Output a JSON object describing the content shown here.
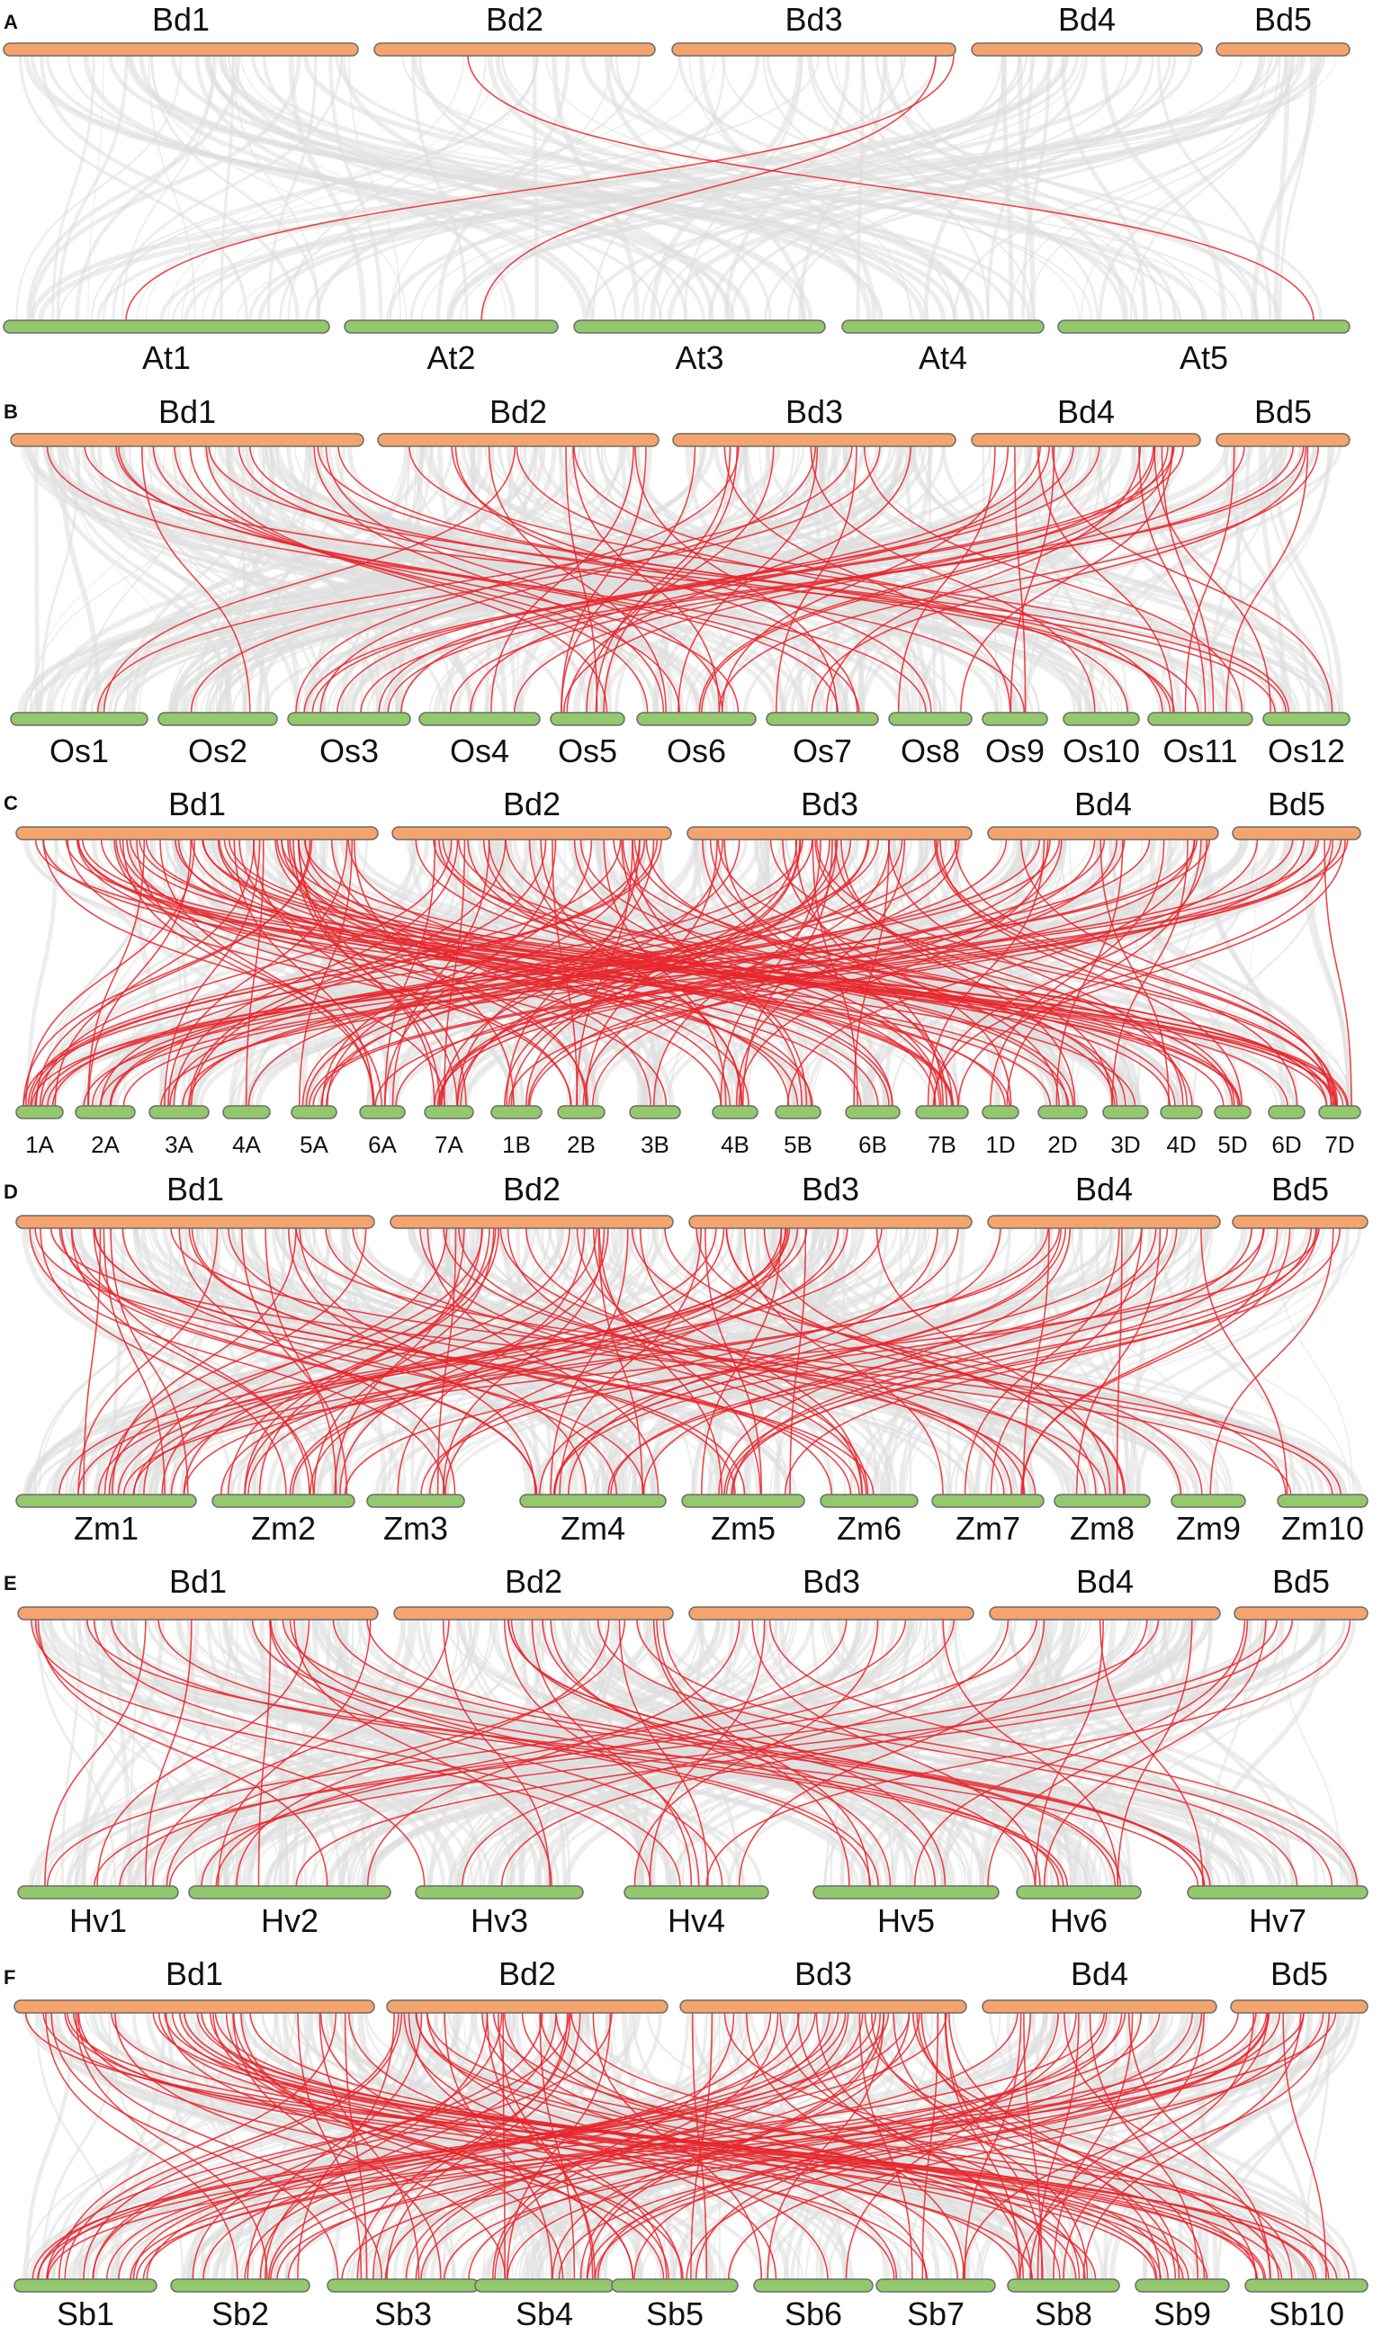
{
  "colors": {
    "top_chromosome": "#f4a46c",
    "bottom_chromosome": "#93c86d",
    "background_link": "#dedede",
    "highlight_link": "#e8262b"
  },
  "top_chromosomes": [
    "Bd1",
    "Bd2",
    "Bd3",
    "Bd4",
    "Bd5"
  ],
  "panels": [
    {
      "letter": "A",
      "bottom_chromosomes": [
        "At1",
        "At2",
        "At3",
        "At4",
        "At5"
      ],
      "red_link_count": 3,
      "grey_link_density": 140
    },
    {
      "letter": "B",
      "bottom_chromosomes": [
        "Os1",
        "Os2",
        "Os3",
        "Os4",
        "Os5",
        "Os6",
        "Os7",
        "Os8",
        "Os9",
        "Os10",
        "Os11",
        "Os12"
      ],
      "red_link_count": 70,
      "grey_link_density": 300
    },
    {
      "letter": "C",
      "bottom_chromosomes": [
        "1A",
        "2A",
        "3A",
        "4A",
        "5A",
        "6A",
        "7A",
        "1B",
        "2B",
        "3B",
        "4B",
        "5B",
        "6B",
        "7B",
        "1D",
        "2D",
        "3D",
        "4D",
        "5D",
        "6D",
        "7D"
      ],
      "red_link_count": 170,
      "grey_link_density": 320,
      "small_labels": true
    },
    {
      "letter": "D",
      "bottom_chromosomes": [
        "Zm1",
        "Zm2",
        "Zm3",
        "Zm4",
        "Zm5",
        "Zm6",
        "Zm7",
        "Zm8",
        "Zm9",
        "Zm10"
      ],
      "red_link_count": 110,
      "grey_link_density": 300
    },
    {
      "letter": "E",
      "bottom_chromosomes": [
        "Hv1",
        "Hv2",
        "Hv3",
        "Hv4",
        "Hv5",
        "Hv6",
        "Hv7"
      ],
      "red_link_count": 60,
      "grey_link_density": 300
    },
    {
      "letter": "F",
      "bottom_chromosomes": [
        "Sb1",
        "Sb2",
        "Sb3",
        "Sb4",
        "Sb5",
        "Sb6",
        "Sb7",
        "Sb8",
        "Sb9",
        "Sb10"
      ],
      "red_link_count": 140,
      "grey_link_density": 300
    }
  ]
}
